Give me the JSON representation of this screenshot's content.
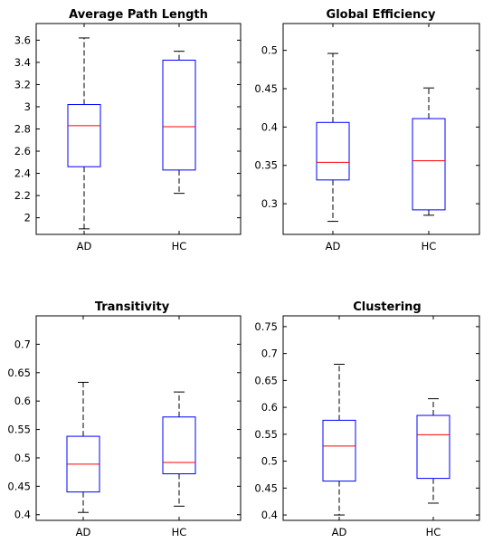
{
  "chart_data": [
    {
      "type": "box",
      "title": "Average Path Length",
      "categories": [
        "AD",
        "HC"
      ],
      "ylim": [
        1.85,
        3.75
      ],
      "yticks": [
        2,
        2.2,
        2.4,
        2.6,
        2.8,
        3,
        3.2,
        3.4,
        3.6
      ],
      "ytick_labels": [
        "2",
        "2.2",
        "2.4",
        "2.6",
        "2.8",
        "3",
        "3.2",
        "3.4",
        "3.6"
      ],
      "boxes": [
        {
          "category": "AD",
          "min": 1.9,
          "q1": 2.46,
          "median": 2.83,
          "q3": 3.02,
          "max": 3.62
        },
        {
          "category": "HC",
          "min": 2.22,
          "q1": 2.43,
          "median": 2.82,
          "q3": 3.42,
          "max": 3.5
        }
      ]
    },
    {
      "type": "box",
      "title": "Global Efficiency",
      "categories": [
        "AD",
        "HC"
      ],
      "ylim": [
        0.26,
        0.535
      ],
      "yticks": [
        0.3,
        0.35,
        0.4,
        0.45,
        0.5
      ],
      "ytick_labels": [
        "0.3",
        "0.35",
        "0.4",
        "0.45",
        "0.5"
      ],
      "boxes": [
        {
          "category": "AD",
          "min": 0.277,
          "q1": 0.331,
          "median": 0.354,
          "q3": 0.406,
          "max": 0.496
        },
        {
          "category": "HC",
          "min": 0.285,
          "q1": 0.292,
          "median": 0.356,
          "q3": 0.411,
          "max": 0.451
        }
      ]
    },
    {
      "type": "box",
      "title": "Transitivity",
      "categories": [
        "AD",
        "HC"
      ],
      "ylim": [
        0.39,
        0.75
      ],
      "yticks": [
        0.4,
        0.45,
        0.5,
        0.55,
        0.6,
        0.65,
        0.7
      ],
      "ytick_labels": [
        "0.4",
        "0.45",
        "0.5",
        "0.55",
        "0.6",
        "0.65",
        "0.7"
      ],
      "boxes": [
        {
          "category": "AD",
          "min": 0.404,
          "q1": 0.44,
          "median": 0.489,
          "q3": 0.538,
          "max": 0.633
        },
        {
          "category": "HC",
          "min": 0.415,
          "q1": 0.472,
          "median": 0.492,
          "q3": 0.572,
          "max": 0.616
        }
      ]
    },
    {
      "type": "box",
      "title": "Clustering",
      "categories": [
        "AD",
        "HC"
      ],
      "ylim": [
        0.39,
        0.77
      ],
      "yticks": [
        0.4,
        0.45,
        0.5,
        0.55,
        0.6,
        0.65,
        0.7,
        0.75
      ],
      "ytick_labels": [
        "0.4",
        "0.45",
        "0.5",
        "0.55",
        "0.6",
        "0.65",
        "0.7",
        "0.75"
      ],
      "boxes": [
        {
          "category": "AD",
          "min": 0.4,
          "q1": 0.463,
          "median": 0.528,
          "q3": 0.576,
          "max": 0.68
        },
        {
          "category": "HC",
          "min": 0.422,
          "q1": 0.468,
          "median": 0.549,
          "q3": 0.585,
          "max": 0.616
        }
      ]
    }
  ],
  "colors": {
    "box": "#0000ff",
    "median": "#ff0000",
    "whisker": "#000000",
    "axes": "#000000",
    "background": "#ffffff"
  }
}
